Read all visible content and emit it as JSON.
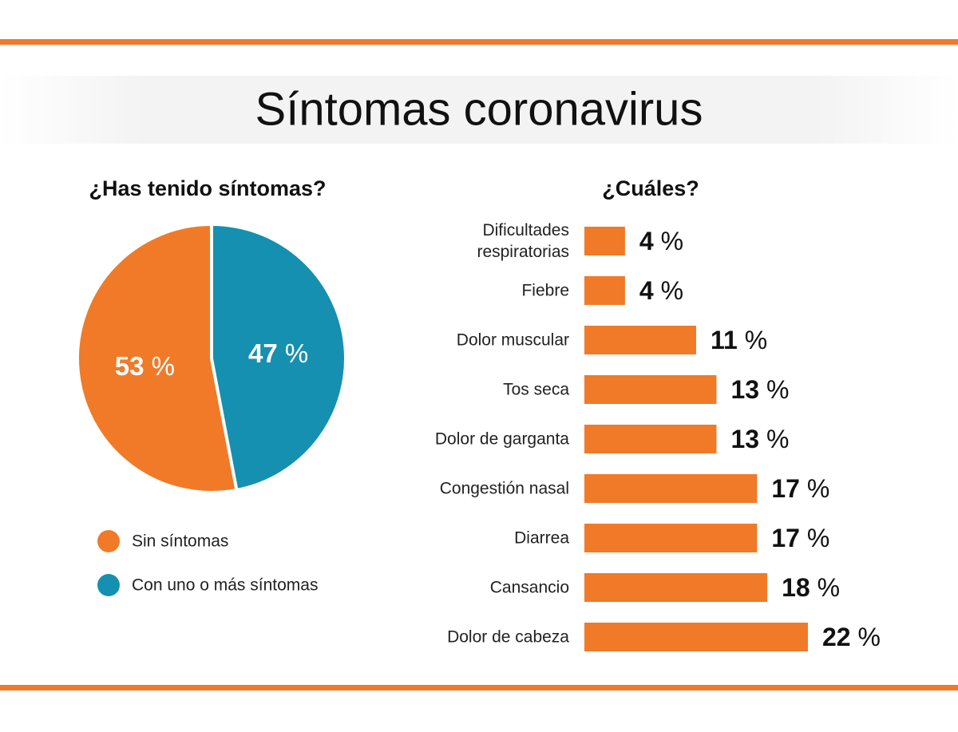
{
  "title": "Síntomas coronavirus",
  "chart_data": [
    {
      "type": "pie",
      "title": "¿Has tenido síntomas?",
      "categories": [
        "Sin síntomas",
        "Con uno o más síntomas"
      ],
      "values": [
        53,
        47
      ],
      "value_labels": [
        "53 %",
        "47 %"
      ],
      "colors": [
        "#f07a28",
        "#1590b0"
      ]
    },
    {
      "type": "bar",
      "title": "¿Cuáles?",
      "categories": [
        "Dificultades respiratorias",
        "Fiebre",
        "Dolor muscular",
        "Tos seca",
        "Dolor de garganta",
        "Congestión nasal",
        "Diarrea",
        "Cansancio",
        "Dolor de cabeza"
      ],
      "values": [
        4,
        4,
        11,
        13,
        13,
        17,
        17,
        18,
        22
      ],
      "value_labels": [
        "4 %",
        "4 %",
        "11 %",
        "13 %",
        "13 %",
        "17 %",
        "17 %",
        "18 %",
        "22 %"
      ],
      "color": "#f07a28"
    }
  ]
}
